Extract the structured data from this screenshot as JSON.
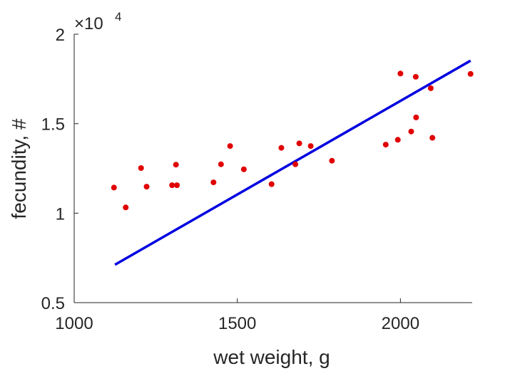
{
  "chart_data": {
    "type": "scatter",
    "xlabel": "wet weight, g",
    "ylabel": "fecundity, #",
    "xlim": [
      1000,
      2220
    ],
    "ylim": [
      0.5,
      2.0
    ],
    "y_multiplier": "×10",
    "y_multiplier_power": "4",
    "x_ticks": [
      1000,
      1500,
      2000
    ],
    "x_tick_labels": [
      "1000",
      "1500",
      "2000"
    ],
    "y_ticks": [
      0.5,
      1.0,
      1.5,
      2.0
    ],
    "y_tick_labels": [
      "0.5",
      "1",
      "1.5",
      "2"
    ],
    "grid": false,
    "legend": "none",
    "colors": {
      "points": "#e00000",
      "fit": "#0000e0",
      "axis": "#262626"
    },
    "series": [
      {
        "kind": "points",
        "x": [
          1122,
          1158,
          1205,
          1222,
          1300,
          1312,
          1315,
          1427,
          1450,
          1478,
          1520,
          1605,
          1635,
          1678,
          1690,
          1725,
          1790,
          1955,
          1992,
          2000,
          2033,
          2047,
          2048,
          2093,
          2098,
          2215
        ],
        "y": [
          1.143,
          1.032,
          1.252,
          1.148,
          1.156,
          1.271,
          1.156,
          1.172,
          1.273,
          1.375,
          1.245,
          1.162,
          1.365,
          1.273,
          1.39,
          1.375,
          1.293,
          1.383,
          1.41,
          1.78,
          1.456,
          1.762,
          1.535,
          1.698,
          1.421,
          1.778
        ]
      },
      {
        "kind": "fit-line",
        "x": [
          1125,
          2215
        ],
        "y": [
          0.712,
          1.852
        ]
      }
    ]
  }
}
